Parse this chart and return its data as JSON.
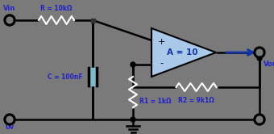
{
  "bg_color": "#7a7a7a",
  "line_color": "#000000",
  "text_color": "#2222cc",
  "op_amp_fill": "#aac8e8",
  "cap_fill": "#7bbccc",
  "arrow_color": "#1133aa",
  "vin_label": "Vin",
  "vout_label": "Vout",
  "gnd_label": "0v",
  "r_label": "R = 10kΩ",
  "c_label": "C = 100nF",
  "r1_label": "R1 = 1kΩ",
  "r2_label": "R2 = 9k1Ω",
  "amp_label": "A = 10",
  "lw": 1.8
}
